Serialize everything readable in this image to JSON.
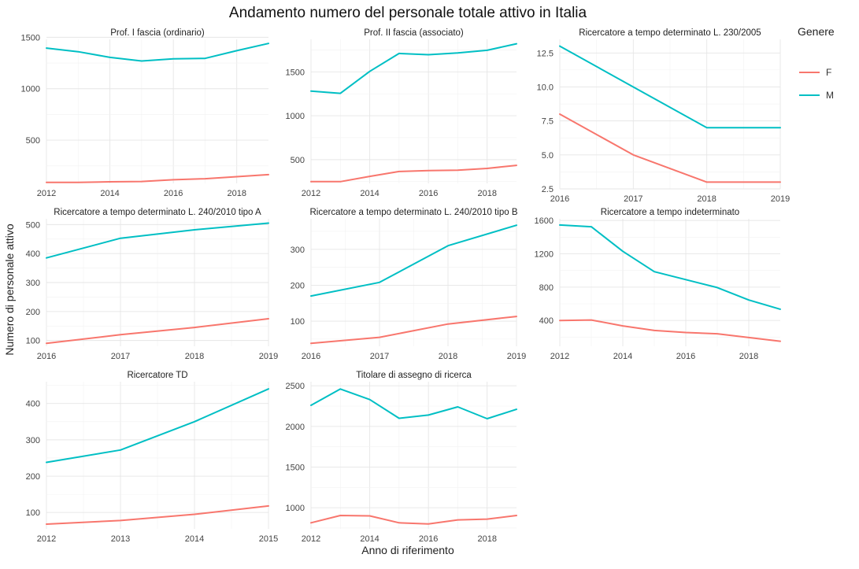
{
  "title": "Andamento numero del personale totale attivo in Italia",
  "xlabel": "Anno di riferimento",
  "ylabel": "Numero di personale attivo",
  "legend": {
    "title": "Genere",
    "items": [
      {
        "label": "F",
        "color": "#F8766D"
      },
      {
        "label": "M",
        "color": "#00BFC4"
      }
    ]
  },
  "chart_data": [
    {
      "type": "line",
      "title": "Prof. I fascia (ordinario)",
      "xlim": [
        2012,
        2019
      ],
      "ylim": [
        80,
        1480
      ],
      "xticks": [
        2012,
        2014,
        2016,
        2018
      ],
      "yticks": [
        500,
        1000,
        1500
      ],
      "ytick_labels": [
        "500",
        "1000",
        "1500"
      ],
      "x": [
        2012,
        2013,
        2014,
        2015,
        2016,
        2017,
        2018,
        2019
      ],
      "series": [
        {
          "name": "F",
          "values": [
            90,
            90,
            95,
            98,
            115,
            125,
            145,
            165
          ]
        },
        {
          "name": "M",
          "values": [
            1395,
            1360,
            1305,
            1270,
            1290,
            1295,
            1370,
            1440
          ]
        }
      ]
    },
    {
      "type": "line",
      "title": "Prof. II fascia (associato)",
      "xlim": [
        2012,
        2019
      ],
      "ylim": [
        230,
        1870
      ],
      "xticks": [
        2012,
        2014,
        2016,
        2018
      ],
      "yticks": [
        500,
        1000,
        1500
      ],
      "ytick_labels": [
        "500",
        "1000",
        "1500"
      ],
      "x": [
        2012,
        2013,
        2014,
        2015,
        2016,
        2017,
        2018,
        2019
      ],
      "series": [
        {
          "name": "F",
          "values": [
            250,
            250,
            310,
            365,
            375,
            380,
            400,
            435
          ]
        },
        {
          "name": "M",
          "values": [
            1280,
            1255,
            1505,
            1710,
            1695,
            1715,
            1745,
            1820
          ]
        }
      ]
    },
    {
      "type": "line",
      "title": "Ricercatore a tempo determinato L. 230/2005",
      "xlim": [
        2016,
        2019
      ],
      "ylim": [
        2.5,
        13.5
      ],
      "xticks": [
        2016,
        2017,
        2018,
        2019
      ],
      "yticks": [
        2.5,
        5.0,
        7.5,
        10.0,
        12.5
      ],
      "ytick_labels": [
        "2.5",
        "5.0",
        "7.5",
        "10.0",
        "12.5"
      ],
      "x": [
        2016,
        2017,
        2018,
        2019
      ],
      "series": [
        {
          "name": "F",
          "values": [
            8,
            5,
            3,
            3
          ]
        },
        {
          "name": "M",
          "values": [
            13,
            10,
            7,
            7
          ]
        }
      ]
    },
    {
      "type": "line",
      "title": "Ricercatore a tempo determinato L. 240/2010 tipo A",
      "xlim": [
        2016,
        2019
      ],
      "ylim": [
        80,
        520
      ],
      "xticks": [
        2016,
        2017,
        2018,
        2019
      ],
      "yticks": [
        100,
        200,
        300,
        400,
        500
      ],
      "ytick_labels": [
        "100",
        "200",
        "300",
        "400",
        "500"
      ],
      "x": [
        2016,
        2017,
        2018,
        2019
      ],
      "series": [
        {
          "name": "F",
          "values": [
            90,
            120,
            145,
            175
          ]
        },
        {
          "name": "M",
          "values": [
            385,
            453,
            482,
            505
          ]
        }
      ]
    },
    {
      "type": "line",
      "title": "Ricercatore a tempo determinato L. 240/2010 tipo B",
      "xlim": [
        2016,
        2019
      ],
      "ylim": [
        30,
        385
      ],
      "xticks": [
        2016,
        2017,
        2018,
        2019
      ],
      "yticks": [
        100,
        200,
        300
      ],
      "ytick_labels": [
        "100",
        "200",
        "300"
      ],
      "x": [
        2016,
        2017,
        2018,
        2019
      ],
      "series": [
        {
          "name": "F",
          "values": [
            38,
            55,
            92,
            113
          ]
        },
        {
          "name": "M",
          "values": [
            170,
            208,
            310,
            367
          ]
        }
      ]
    },
    {
      "type": "line",
      "title": "Ricercatore a tempo indeterminato",
      "xlim": [
        2012,
        2019
      ],
      "ylim": [
        90,
        1620
      ],
      "xticks": [
        2012,
        2014,
        2016,
        2018
      ],
      "yticks": [
        400,
        800,
        1200,
        1600
      ],
      "ytick_labels": [
        "400",
        "800",
        "1200",
        "1600"
      ],
      "x": [
        2012,
        2013,
        2014,
        2015,
        2016,
        2017,
        2018,
        2019
      ],
      "series": [
        {
          "name": "F",
          "values": [
            400,
            405,
            335,
            280,
            255,
            240,
            195,
            150
          ]
        },
        {
          "name": "M",
          "values": [
            1545,
            1525,
            1230,
            985,
            890,
            795,
            645,
            535
          ]
        }
      ]
    },
    {
      "type": "line",
      "title": "Ricercatore TD",
      "xlim": [
        2012,
        2015
      ],
      "ylim": [
        55,
        460
      ],
      "xticks": [
        2012,
        2013,
        2014,
        2015
      ],
      "yticks": [
        100,
        200,
        300,
        400
      ],
      "ytick_labels": [
        "100",
        "200",
        "300",
        "400"
      ],
      "x": [
        2012,
        2013,
        2014,
        2015
      ],
      "series": [
        {
          "name": "F",
          "values": [
            68,
            78,
            95,
            118
          ]
        },
        {
          "name": "M",
          "values": [
            238,
            272,
            350,
            440
          ]
        }
      ]
    },
    {
      "type": "line",
      "title": "Titolare di assegno di ricerca",
      "xlim": [
        2012,
        2019
      ],
      "ylim": [
        740,
        2550
      ],
      "xticks": [
        2012,
        2014,
        2016,
        2018
      ],
      "yticks": [
        1000,
        1500,
        2000,
        2500
      ],
      "ytick_labels": [
        "1000",
        "1500",
        "2000",
        "2500"
      ],
      "x": [
        2012,
        2013,
        2014,
        2015,
        2016,
        2017,
        2018,
        2019
      ],
      "series": [
        {
          "name": "F",
          "values": [
            815,
            905,
            900,
            815,
            800,
            850,
            860,
            905
          ]
        },
        {
          "name": "M",
          "values": [
            2260,
            2460,
            2330,
            2100,
            2140,
            2240,
            2095,
            2210
          ]
        }
      ]
    }
  ]
}
